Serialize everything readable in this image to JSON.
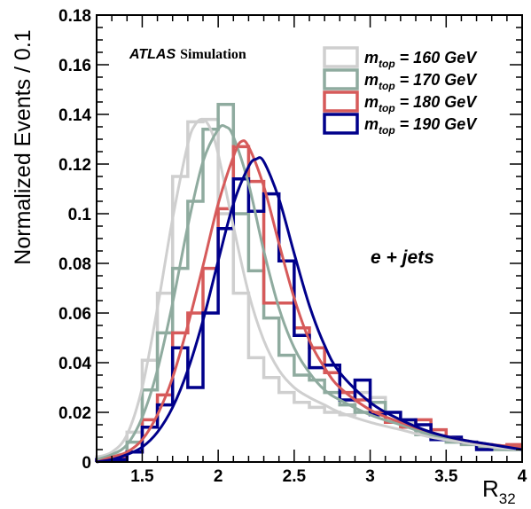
{
  "chart_data": {
    "type": "line",
    "xlabel": {
      "main": "R",
      "sub": "32"
    },
    "ylabel": "Normalized Events / 0.1",
    "xlim": [
      1.2,
      4.0
    ],
    "ylim": [
      0,
      0.18
    ],
    "x_ticks": [
      1.5,
      2,
      2.5,
      3,
      3.5,
      4
    ],
    "x_tick_labels": [
      "1.5",
      "2",
      "2.5",
      "3",
      "3.5",
      "4"
    ],
    "y_ticks": [
      0,
      0.02,
      0.04,
      0.06,
      0.08,
      0.1,
      0.12,
      0.14,
      0.16,
      0.18
    ],
    "y_tick_labels": [
      "0",
      "0.02",
      "0.04",
      "0.06",
      "0.08",
      "0.1",
      "0.12",
      "0.14",
      "0.16",
      "0.18"
    ],
    "experiment_label": {
      "bold": "ATLAS",
      "rest": "Simulation"
    },
    "annotation": "e + jets",
    "legend_position": "top-right",
    "bin_edges": [
      1.2,
      1.3,
      1.4,
      1.5,
      1.6,
      1.7,
      1.8,
      1.9,
      2.0,
      2.1,
      2.2,
      2.3,
      2.4,
      2.5,
      2.6,
      2.7,
      2.8,
      2.9,
      3.0,
      3.1,
      3.2,
      3.3,
      3.4,
      3.5,
      3.6,
      3.7,
      3.8,
      3.9,
      4.0
    ],
    "series": [
      {
        "legend": {
          "main": "m",
          "sub": "top",
          "rest": " = 160 GeV"
        },
        "color": "#cfcfcf",
        "hist": [
          0.002,
          0.003,
          0.012,
          0.041,
          0.068,
          0.115,
          0.137,
          0.138,
          0.1,
          0.068,
          0.042,
          0.034,
          0.028,
          0.024,
          0.022,
          0.02,
          0.019,
          0.028,
          0.026,
          0.02,
          0.016,
          0.012,
          0.01,
          0.009,
          0.008,
          0.007,
          0.006,
          0.005
        ],
        "fit": [
          [
            1.2,
            0.002
          ],
          [
            1.3,
            0.004
          ],
          [
            1.4,
            0.011
          ],
          [
            1.5,
            0.03
          ],
          [
            1.6,
            0.062
          ],
          [
            1.7,
            0.098
          ],
          [
            1.8,
            0.128
          ],
          [
            1.85,
            0.136
          ],
          [
            1.9,
            0.138
          ],
          [
            1.95,
            0.134
          ],
          [
            2.0,
            0.124
          ],
          [
            2.1,
            0.095
          ],
          [
            2.2,
            0.068
          ],
          [
            2.3,
            0.049
          ],
          [
            2.4,
            0.037
          ],
          [
            2.5,
            0.03
          ],
          [
            2.6,
            0.026
          ],
          [
            2.7,
            0.023
          ],
          [
            2.8,
            0.02
          ],
          [
            3.0,
            0.016
          ],
          [
            3.2,
            0.013
          ],
          [
            3.4,
            0.01
          ],
          [
            3.6,
            0.008
          ],
          [
            3.8,
            0.006
          ],
          [
            4.0,
            0.005
          ]
        ]
      },
      {
        "legend": {
          "main": "m",
          "sub": "top",
          "rest": " = 170 GeV"
        },
        "color": "#8fab9f",
        "hist": [
          0.001,
          0.002,
          0.008,
          0.029,
          0.052,
          0.078,
          0.105,
          0.134,
          0.144,
          0.1,
          0.077,
          0.058,
          0.043,
          0.035,
          0.033,
          0.028,
          0.023,
          0.02,
          0.024,
          0.016,
          0.014,
          0.011,
          0.009,
          0.008,
          0.007,
          0.006,
          0.005,
          0.005
        ],
        "fit": [
          [
            1.2,
            0.001
          ],
          [
            1.3,
            0.003
          ],
          [
            1.4,
            0.007
          ],
          [
            1.5,
            0.018
          ],
          [
            1.6,
            0.037
          ],
          [
            1.7,
            0.064
          ],
          [
            1.8,
            0.095
          ],
          [
            1.9,
            0.121
          ],
          [
            2.0,
            0.134
          ],
          [
            2.05,
            0.135
          ],
          [
            2.1,
            0.131
          ],
          [
            2.2,
            0.112
          ],
          [
            2.3,
            0.085
          ],
          [
            2.4,
            0.062
          ],
          [
            2.5,
            0.046
          ],
          [
            2.6,
            0.036
          ],
          [
            2.7,
            0.029
          ],
          [
            2.8,
            0.025
          ],
          [
            3.0,
            0.019
          ],
          [
            3.2,
            0.015
          ],
          [
            3.4,
            0.011
          ],
          [
            3.6,
            0.009
          ],
          [
            3.8,
            0.007
          ],
          [
            4.0,
            0.006
          ]
        ]
      },
      {
        "legend": {
          "main": "m",
          "sub": "top",
          "rest": " = 180 GeV"
        },
        "color": "#d65a5a",
        "hist": [
          0.001,
          0.002,
          0.004,
          0.017,
          0.027,
          0.052,
          0.06,
          0.078,
          0.102,
          0.127,
          0.113,
          0.064,
          0.064,
          0.054,
          0.046,
          0.036,
          0.028,
          0.025,
          0.02,
          0.016,
          0.014,
          0.017,
          0.013,
          0.009,
          0.008,
          0.007,
          0.006,
          0.007
        ],
        "fit": [
          [
            1.2,
            0.0
          ],
          [
            1.3,
            0.002
          ],
          [
            1.4,
            0.004
          ],
          [
            1.5,
            0.009
          ],
          [
            1.6,
            0.019
          ],
          [
            1.7,
            0.034
          ],
          [
            1.8,
            0.055
          ],
          [
            1.9,
            0.079
          ],
          [
            2.0,
            0.104
          ],
          [
            2.1,
            0.123
          ],
          [
            2.15,
            0.129
          ],
          [
            2.2,
            0.127
          ],
          [
            2.3,
            0.111
          ],
          [
            2.4,
            0.088
          ],
          [
            2.5,
            0.066
          ],
          [
            2.6,
            0.049
          ],
          [
            2.7,
            0.038
          ],
          [
            2.8,
            0.03
          ],
          [
            3.0,
            0.021
          ],
          [
            3.2,
            0.016
          ],
          [
            3.4,
            0.012
          ],
          [
            3.6,
            0.009
          ],
          [
            3.8,
            0.007
          ],
          [
            4.0,
            0.006
          ]
        ]
      },
      {
        "legend": {
          "main": "m",
          "sub": "top",
          "rest": " = 190 GeV"
        },
        "color": "#00008b",
        "hist": [
          0.001,
          0.001,
          0.004,
          0.014,
          0.023,
          0.046,
          0.03,
          0.06,
          0.094,
          0.114,
          0.101,
          0.108,
          0.081,
          0.051,
          0.038,
          0.039,
          0.025,
          0.033,
          0.019,
          0.02,
          0.017,
          0.015,
          0.009,
          0.01,
          0.008,
          0.005,
          0.006,
          0.006
        ],
        "fit": [
          [
            1.2,
            0.0
          ],
          [
            1.3,
            0.001
          ],
          [
            1.4,
            0.003
          ],
          [
            1.5,
            0.006
          ],
          [
            1.6,
            0.012
          ],
          [
            1.7,
            0.022
          ],
          [
            1.8,
            0.037
          ],
          [
            1.9,
            0.057
          ],
          [
            2.0,
            0.081
          ],
          [
            2.1,
            0.104
          ],
          [
            2.2,
            0.119
          ],
          [
            2.25,
            0.122
          ],
          [
            2.3,
            0.121
          ],
          [
            2.4,
            0.106
          ],
          [
            2.5,
            0.084
          ],
          [
            2.6,
            0.063
          ],
          [
            2.7,
            0.047
          ],
          [
            2.8,
            0.036
          ],
          [
            3.0,
            0.024
          ],
          [
            3.2,
            0.017
          ],
          [
            3.4,
            0.012
          ],
          [
            3.6,
            0.009
          ],
          [
            3.8,
            0.007
          ],
          [
            4.0,
            0.005
          ]
        ]
      }
    ]
  }
}
